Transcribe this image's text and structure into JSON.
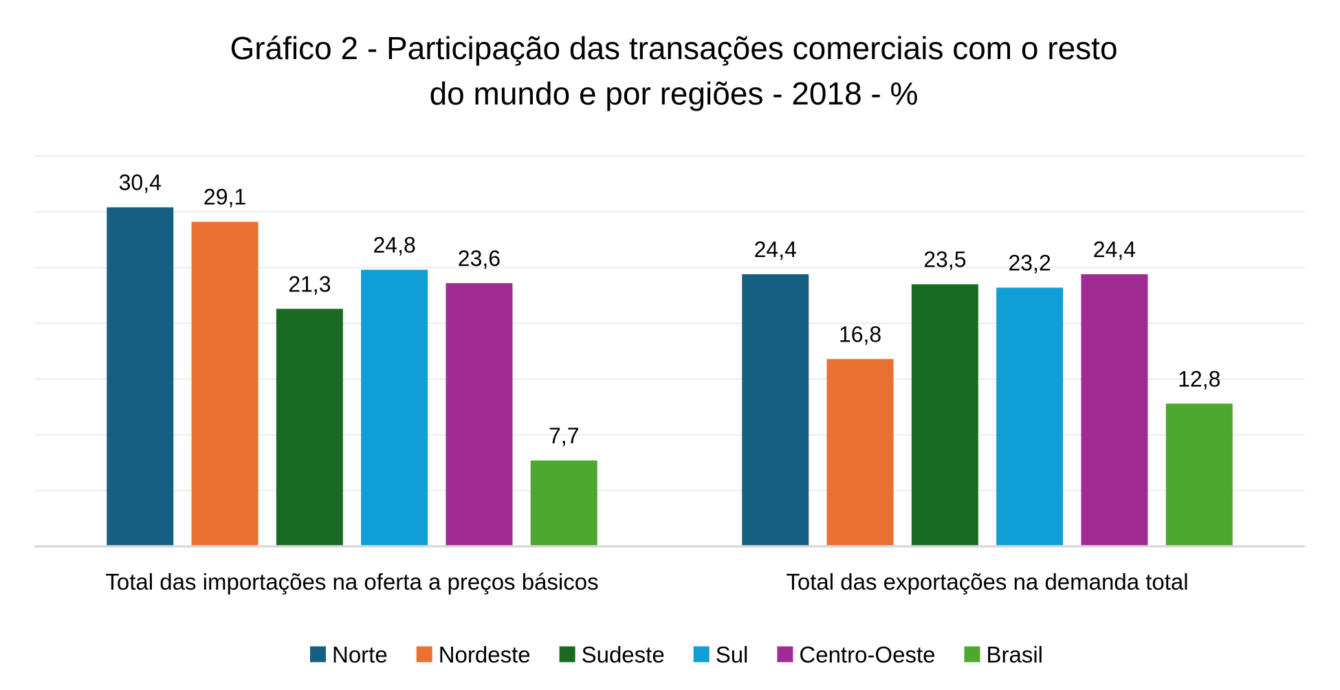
{
  "chart_data": {
    "type": "bar",
    "title": "Gráfico 2 - Participação das transações comerciais com o resto do mundo e por regiões - 2018 - %",
    "title_lines": [
      "Gráfico 2 - Participação das transações comerciais com o resto",
      "do mundo e por regiões - 2018 - %"
    ],
    "categories": [
      "Total das importações na oferta a preços básicos",
      "Total das exportações na demanda total"
    ],
    "series": [
      {
        "name": "Norte",
        "color": "#156082",
        "values": [
          30.4,
          24.4
        ],
        "labels": [
          "30,4",
          "24,4"
        ]
      },
      {
        "name": "Nordeste",
        "color": "#E97132",
        "values": [
          29.1,
          16.8
        ],
        "labels": [
          "29,1",
          "16,8"
        ]
      },
      {
        "name": "Sudeste",
        "color": "#196B24",
        "values": [
          21.3,
          23.5
        ],
        "labels": [
          "21,3",
          "23,5"
        ]
      },
      {
        "name": "Sul",
        "color": "#0F9ED5",
        "values": [
          24.8,
          23.2
        ],
        "labels": [
          "24,8",
          "23,2"
        ]
      },
      {
        "name": "Centro-Oeste",
        "color": "#A02B93",
        "values": [
          23.6,
          24.4
        ],
        "labels": [
          "23,6",
          "24,4"
        ]
      },
      {
        "name": "Brasil",
        "color": "#4EA72E",
        "values": [
          7.7,
          12.8
        ],
        "labels": [
          "7,7",
          "12,8"
        ]
      }
    ],
    "xlabel": "",
    "ylabel": "",
    "ylim": [
      0,
      35
    ],
    "ytick_step": 5,
    "y_axis_labels_visible": false,
    "grid": true,
    "legend": "bottom-center",
    "data_labels": true
  }
}
